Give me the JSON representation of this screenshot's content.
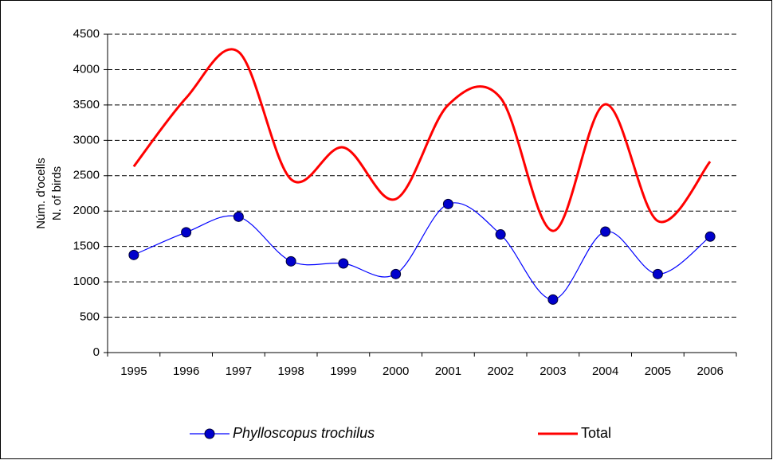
{
  "chart_data": {
    "type": "line",
    "y_label": [
      "Núm. d'ocells",
      "N. of birds"
    ],
    "categories": [
      "1995",
      "1996",
      "1997",
      "1998",
      "1999",
      "2000",
      "2001",
      "2002",
      "2003",
      "2004",
      "2005",
      "2006"
    ],
    "series": [
      {
        "name": "Phylloscopus trochilus",
        "color": "#0000ff",
        "values": [
          1380,
          1700,
          1920,
          1290,
          1260,
          1110,
          2100,
          1670,
          750,
          1710,
          1110,
          1640
        ]
      },
      {
        "name": "Total",
        "color": "#ff0000",
        "values": [
          2630,
          3600,
          4250,
          2450,
          2900,
          2170,
          3500,
          3600,
          1720,
          3510,
          1860,
          2700
        ]
      }
    ],
    "ylim": [
      0,
      4500
    ],
    "yticks": [
      0,
      500,
      1000,
      1500,
      2000,
      2500,
      3000,
      3500,
      4000,
      4500
    ],
    "grid": true
  }
}
